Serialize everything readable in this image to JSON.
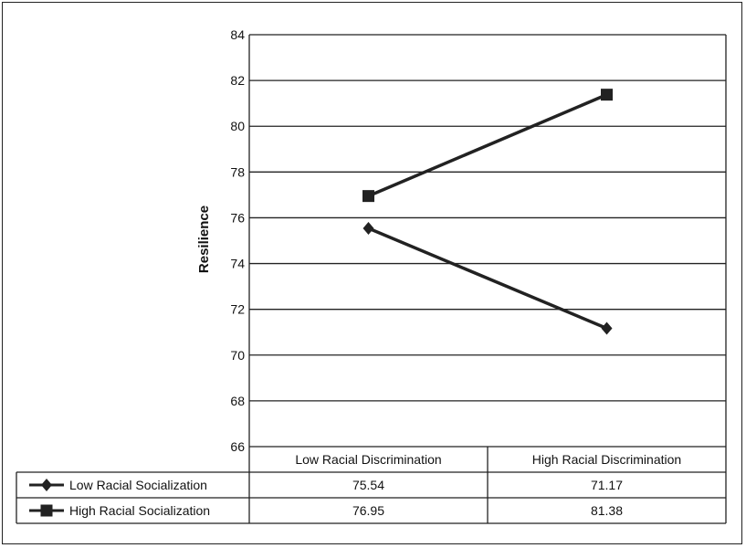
{
  "chart_data": {
    "type": "line",
    "title": "",
    "xlabel": "",
    "ylabel": "Resilience",
    "ylim": [
      66,
      84
    ],
    "yticks": [
      84,
      82,
      80,
      78,
      76,
      74,
      72,
      70,
      68,
      66
    ],
    "categories": [
      "Low Racial Discrimination",
      "High Racial Discrimination"
    ],
    "grid": true,
    "legend": "data-table",
    "series": [
      {
        "name": "Low Racial Socialization",
        "marker": "diamond",
        "values": [
          75.54,
          71.17
        ],
        "value_labels": [
          "75.54",
          "71.17"
        ]
      },
      {
        "name": "High Racial Socialization",
        "marker": "square",
        "values": [
          76.95,
          81.38
        ],
        "value_labels": [
          "76.95",
          "81.38"
        ]
      }
    ],
    "line_color": "#222222"
  }
}
